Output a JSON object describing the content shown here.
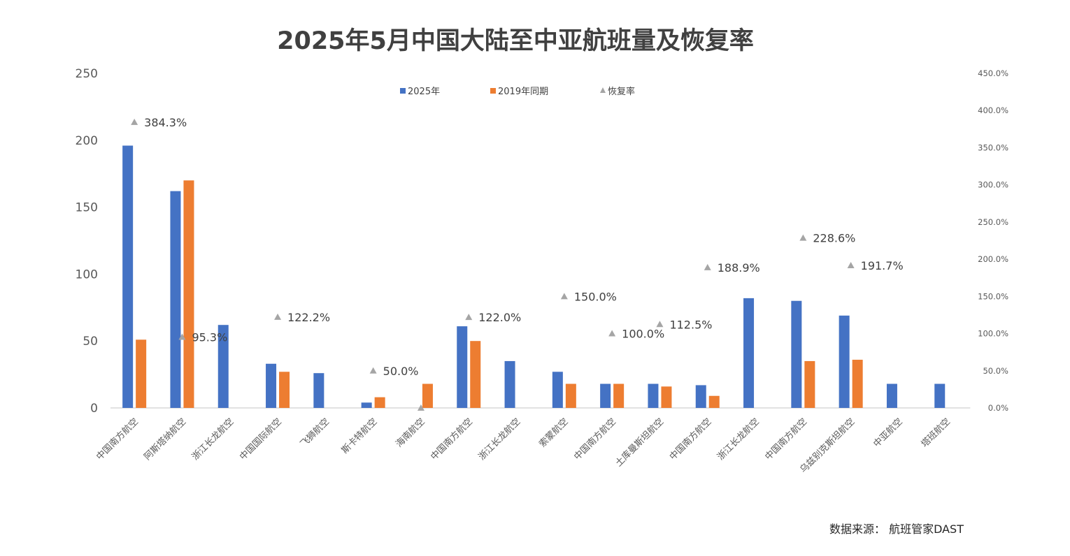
{
  "chart_data": {
    "type": "bar",
    "title": "2025年5月中国大陆至中亚航班量及恢复率",
    "categories": [
      "中国南方航空",
      "阿斯塔纳航空",
      "浙江长龙航空",
      "中国国际航空",
      "飞狮航空",
      "斯卡特航空",
      "海南航空",
      "中国南方航空",
      "浙江长龙航空",
      "索蒙航空",
      "中国南方航空",
      "土库曼斯坦航空",
      "中国南方航空",
      "浙江长龙航空",
      "中国南方航空",
      "乌兹别克斯坦航空",
      "中亚航空",
      "塔班航空"
    ],
    "series": [
      {
        "name": "2025年",
        "type": "bar",
        "axis": "left",
        "color": "#4472C4",
        "values": [
          196,
          162,
          62,
          33,
          26,
          4,
          0,
          61,
          35,
          27,
          18,
          18,
          17,
          82,
          80,
          69,
          18,
          18
        ]
      },
      {
        "name": "2019年同期",
        "type": "bar",
        "axis": "left",
        "color": "#ED7D31",
        "values": [
          51,
          170,
          0,
          27,
          0,
          8,
          18,
          50,
          0,
          18,
          18,
          16,
          9,
          0,
          35,
          36,
          0,
          0
        ]
      },
      {
        "name": "恢复率",
        "type": "scatter",
        "axis": "right",
        "color": "#A5A5A5",
        "values": [
          384.3,
          95.3,
          null,
          122.2,
          null,
          50.0,
          0,
          122.0,
          null,
          150.0,
          100.0,
          112.5,
          188.9,
          null,
          228.6,
          191.7,
          null,
          null
        ],
        "labels": [
          "384.3%",
          "95.3%",
          null,
          "122.2%",
          null,
          "50.0%",
          null,
          "122.0%",
          null,
          "150.0%",
          "100.0%",
          "112.5%",
          "188.9%",
          null,
          "228.6%",
          "191.7%",
          null,
          null
        ]
      }
    ],
    "ylim": [
      0,
      250
    ],
    "yticks": [
      "0",
      "50",
      "100",
      "150",
      "200",
      "250"
    ],
    "y2lim": [
      0,
      450
    ],
    "y2ticks": [
      "0.0%",
      "50.0%",
      "100.0%",
      "150.0%",
      "200.0%",
      "250.0%",
      "300.0%",
      "350.0%",
      "400.0%",
      "450.0%"
    ],
    "legend_position": "top",
    "grid": false,
    "xlabel": "",
    "ylabel": ""
  },
  "source": "数据来源：  航班管家DAST"
}
